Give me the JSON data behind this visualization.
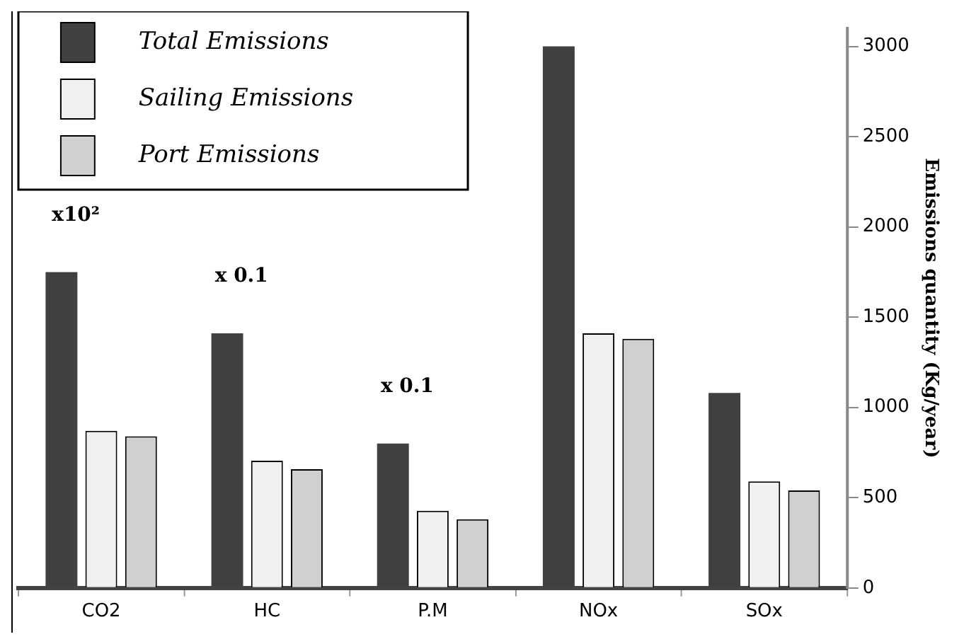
{
  "chart_data": {
    "type": "bar",
    "categories": [
      "CO2",
      "HC",
      "P.M",
      "NOx",
      "SOx"
    ],
    "series": [
      {
        "name": "Total Emissions",
        "color": "#404040",
        "values": [
          1750,
          1410,
          800,
          3000,
          1080
        ]
      },
      {
        "name": "Sailing Emissions",
        "color": "#f0f0f0",
        "values": [
          870,
          705,
          427,
          1410,
          590
        ]
      },
      {
        "name": "Port Emissions",
        "color": "#d0d0d0",
        "values": [
          840,
          658,
          380,
          1380,
          540
        ]
      }
    ],
    "ylabel": "Emissions quantity (Kg/year)",
    "ylim": [
      0,
      3100
    ],
    "yticks": [
      0,
      500,
      1000,
      1500,
      2000,
      2500,
      3000
    ],
    "annotations": [
      "x10²",
      "x 0.1",
      "x 0.1"
    ],
    "legend": "top left",
    "grid": false
  }
}
